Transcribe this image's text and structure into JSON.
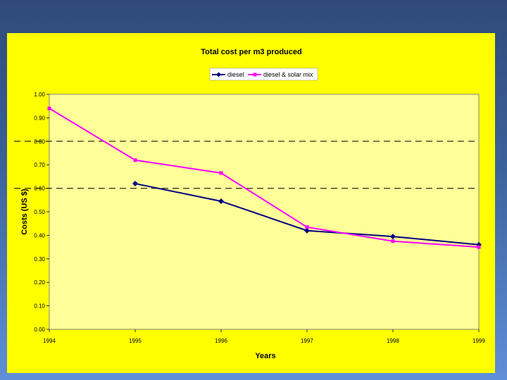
{
  "chart_data": {
    "type": "line",
    "title": "Total cost per m3 produced",
    "xlabel": "Years",
    "ylabel": "Costs (US $)",
    "categories": [
      "1994",
      "1995",
      "1996",
      "1997",
      "1998",
      "1999"
    ],
    "ylim": [
      0,
      1
    ],
    "yticks": [
      "0.00",
      "0.10",
      "0.20",
      "0.30",
      "0.40",
      "0.50",
      "0.60",
      "0.70",
      "0.80",
      "0.90",
      "1.00"
    ],
    "reference_lines": [
      0.8,
      0.6
    ],
    "legend_position": "top-center",
    "series": [
      {
        "name": "diesel",
        "color": "#000080",
        "marker": "diamond",
        "values": [
          null,
          0.62,
          0.545,
          0.42,
          0.395,
          0.36
        ]
      },
      {
        "name": "diesel & solar mix",
        "color": "#ff00ff",
        "marker": "square",
        "values": [
          0.94,
          0.72,
          0.665,
          0.435,
          0.375,
          0.35
        ]
      }
    ]
  }
}
